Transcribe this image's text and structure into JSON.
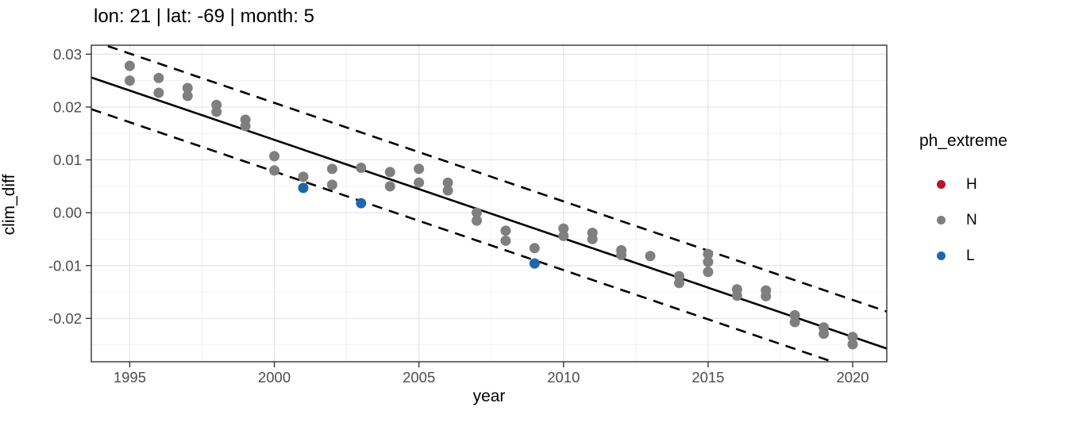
{
  "figure": {
    "title": "lon: 21 | lat: -69 | month: 5",
    "x_axis_label": "year",
    "y_axis_label": "clim_diff",
    "legend": {
      "title": "ph_extreme",
      "items": [
        {
          "label": "H",
          "color": "#B2182B"
        },
        {
          "label": "N",
          "color": "#7F7F7F"
        },
        {
          "label": "L",
          "color": "#2166AC"
        }
      ]
    }
  },
  "chart_data": {
    "type": "scatter",
    "title": "lon: 21 | lat: -69 | month: 5",
    "xlabel": "year",
    "ylabel": "clim_diff",
    "xlim": [
      1993.67,
      2021.18
    ],
    "ylim": [
      -0.0282,
      0.0317
    ],
    "x_ticks": [
      1995,
      2000,
      2005,
      2010,
      2015,
      2020
    ],
    "x_tick_labels": [
      "1995",
      "2000",
      "2005",
      "2010",
      "2015",
      "2020"
    ],
    "x_minor_gridlines": [
      1997.5,
      2002.5,
      2007.5,
      2012.5,
      2017.5
    ],
    "y_ticks": [
      0.03,
      0.02,
      0.01,
      0.0,
      -0.01,
      -0.02
    ],
    "y_tick_labels": [
      "0.03",
      "0.02",
      "0.01",
      "0.00",
      "-0.01",
      "-0.02"
    ],
    "y_minor_gridlines": [
      0.025,
      0.015,
      0.005,
      -0.005,
      -0.015,
      -0.025
    ],
    "grid": true,
    "legend_title": "ph_extreme",
    "legend_position": "right",
    "series": [
      {
        "name": "H",
        "color": "#B2182B",
        "points": []
      },
      {
        "name": "N",
        "color": "#7F7F7F",
        "points": [
          [
            1995,
            0.0278
          ],
          [
            1995,
            0.025
          ],
          [
            1996,
            0.0255
          ],
          [
            1996,
            0.0227
          ],
          [
            1997,
            0.0236
          ],
          [
            1997,
            0.0221
          ],
          [
            1998,
            0.0204
          ],
          [
            1998,
            0.0191
          ],
          [
            1999,
            0.0176
          ],
          [
            1999,
            0.0164
          ],
          [
            2000,
            0.0107
          ],
          [
            2000,
            0.008
          ],
          [
            2001,
            0.0068
          ],
          [
            2002,
            0.0083
          ],
          [
            2002,
            0.0053
          ],
          [
            2003,
            0.0085
          ],
          [
            2004,
            0.0077
          ],
          [
            2004,
            0.005
          ],
          [
            2005,
            0.0083
          ],
          [
            2005,
            0.0057
          ],
          [
            2006,
            0.0057
          ],
          [
            2006,
            0.0042
          ],
          [
            2007,
            0.0
          ],
          [
            2007,
            -0.0015
          ],
          [
            2008,
            -0.0034
          ],
          [
            2008,
            -0.0053
          ],
          [
            2009,
            -0.0067
          ],
          [
            2010,
            -0.003
          ],
          [
            2010,
            -0.0044
          ],
          [
            2011,
            -0.0038
          ],
          [
            2011,
            -0.005
          ],
          [
            2012,
            -0.0071
          ],
          [
            2012,
            -0.008
          ],
          [
            2013,
            -0.0082
          ],
          [
            2014,
            -0.012
          ],
          [
            2014,
            -0.0133
          ],
          [
            2015,
            -0.0078
          ],
          [
            2015,
            -0.0093
          ],
          [
            2015,
            -0.0112
          ],
          [
            2016,
            -0.0145
          ],
          [
            2016,
            -0.0157
          ],
          [
            2017,
            -0.0147
          ],
          [
            2017,
            -0.0158
          ],
          [
            2018,
            -0.0194
          ],
          [
            2018,
            -0.0207
          ],
          [
            2019,
            -0.0217
          ],
          [
            2019,
            -0.0229
          ],
          [
            2020,
            -0.0235
          ],
          [
            2020,
            -0.0249
          ]
        ]
      },
      {
        "name": "L",
        "color": "#2166AC",
        "points": [
          [
            2001,
            0.0047
          ],
          [
            2003,
            0.0018
          ],
          [
            2009,
            -0.0096
          ]
        ]
      }
    ],
    "lines": [
      {
        "name": "fit-line",
        "style": "solid",
        "x1": 1993.67,
        "y1": 0.0256,
        "x2": 2021.18,
        "y2": -0.0257
      },
      {
        "name": "upper-band-line",
        "style": "dashed",
        "x1": 1993.67,
        "y1": 0.0326,
        "x2": 2021.18,
        "y2": -0.0187
      },
      {
        "name": "lower-band-line",
        "style": "dashed",
        "x1": 1993.67,
        "y1": 0.0196,
        "x2": 2021.18,
        "y2": -0.0317
      }
    ]
  }
}
